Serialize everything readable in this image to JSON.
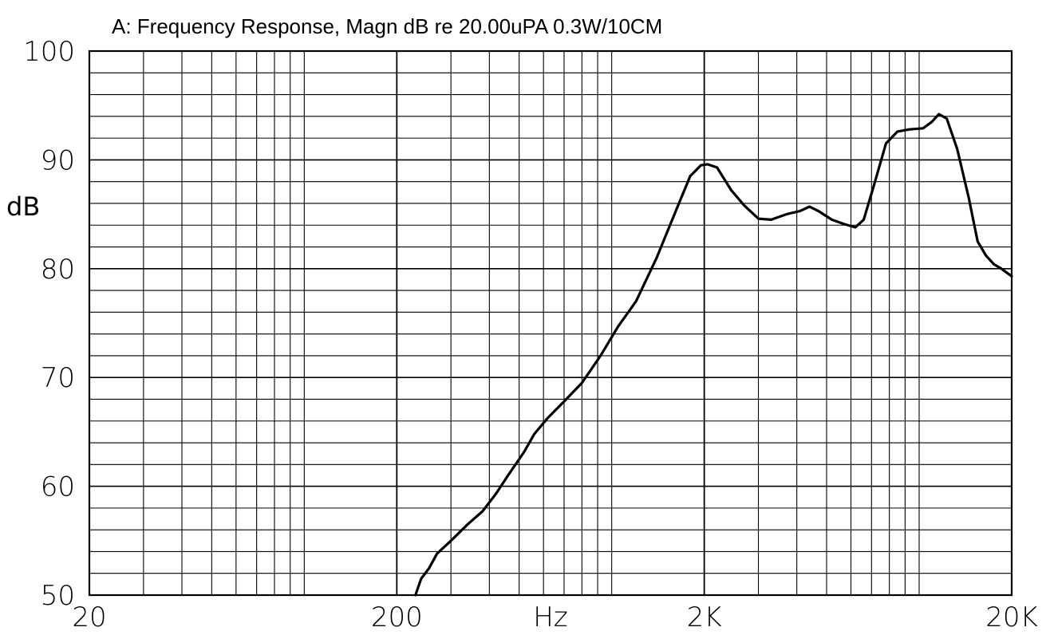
{
  "chart_data": {
    "type": "line",
    "title": "A: Frequency Response, Magn dB re 20.00uPA 0.3W/10CM",
    "xlabel": "Hz",
    "ylabel": "dB",
    "x_scale": "log",
    "xlim": [
      20,
      20000
    ],
    "ylim": [
      50,
      100
    ],
    "grid": true,
    "x_tick_labels": [
      "20",
      "200",
      "2K",
      "20K"
    ],
    "x_ticks": [
      20,
      200,
      2000,
      20000
    ],
    "y_tick_labels": [
      "100",
      "90",
      "80",
      "70",
      "60",
      "50"
    ],
    "y_ticks": [
      100,
      90,
      80,
      70,
      60,
      50
    ],
    "series": [
      {
        "x": [
          230,
          240,
          255,
          270,
          300,
          340,
          380,
          420,
          460,
          520,
          560,
          620,
          700,
          800,
          920,
          1050,
          1200,
          1400,
          1600,
          1800,
          1950,
          2050,
          2200,
          2450,
          2700,
          3000,
          3300,
          3700,
          4100,
          4400,
          4700,
          5200,
          5700,
          6200,
          6600,
          7100,
          7800,
          8500,
          9300,
          10300,
          11000,
          11600,
          12300,
          13300,
          14500,
          15500,
          16500,
          17500,
          18500,
          20000
        ],
        "y": [
          50,
          51.5,
          52.5,
          53.8,
          55,
          56.5,
          57.7,
          59.3,
          61,
          63.2,
          64.8,
          66.3,
          67.8,
          69.5,
          72,
          74.7,
          77,
          81,
          85,
          88.5,
          89.5,
          89.6,
          89.3,
          87.2,
          85.8,
          84.6,
          84.5,
          85,
          85.3,
          85.7,
          85.3,
          84.5,
          84.1,
          83.8,
          84.5,
          87.5,
          91.5,
          92.6,
          92.8,
          92.9,
          93.5,
          94.2,
          93.8,
          91,
          86.5,
          82.5,
          81.2,
          80.4,
          80,
          79.3
        ]
      }
    ]
  }
}
